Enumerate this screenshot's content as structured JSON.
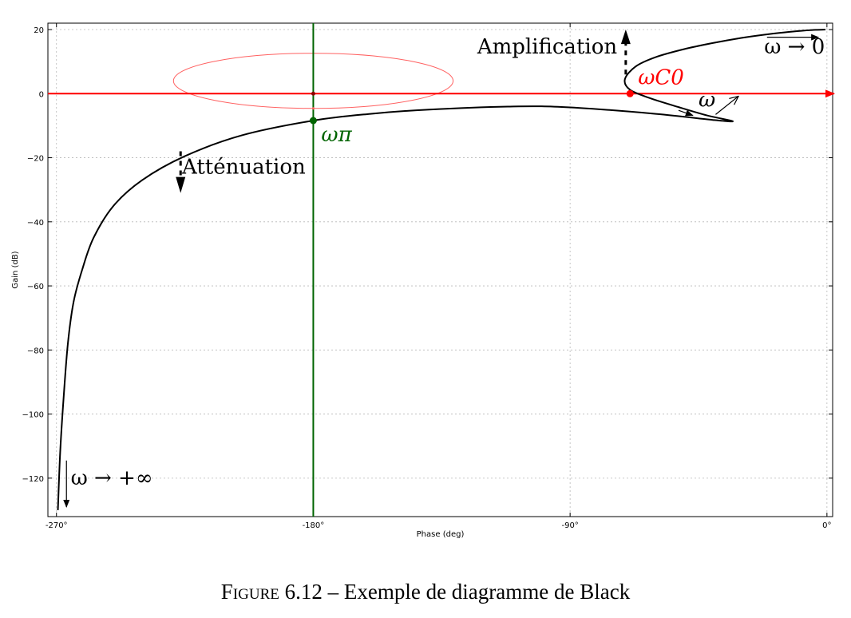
{
  "caption": {
    "figure_label": "Figure 6.12",
    "separator": " – ",
    "text": "Exemple de diagramme de Black"
  },
  "chart_data": {
    "type": "line",
    "title": "",
    "xlabel": "Phase (deg)",
    "ylabel": "Gain (dB)",
    "xlim": [
      -273,
      2
    ],
    "ylim": [
      -132,
      22
    ],
    "xticks": [
      -270,
      -180,
      -90,
      0
    ],
    "xtick_labels": [
      "-270°",
      "-180°",
      "-90°",
      "0°"
    ],
    "yticks": [
      20,
      0,
      -20,
      -40,
      -60,
      -80,
      -100,
      -120
    ],
    "ytick_labels": [
      "20",
      "0",
      "−20",
      "−40",
      "−60",
      "−80",
      "−100",
      "−120"
    ],
    "grid": true,
    "series": [
      {
        "color": "#000000",
        "x": [
          -0.5,
          -4,
          -9,
          -15,
          -22,
          -30,
          -40,
          -50,
          -60,
          -67,
          -70.8,
          -69,
          -62,
          -52,
          -42,
          -33,
          -40,
          -60,
          -90,
          -110,
          -140,
          -160,
          -180,
          -205,
          -225,
          -240,
          -250,
          -257,
          -261,
          -264,
          -266,
          -267.5,
          -268.7,
          -269.5
        ],
        "y": [
          20,
          19.9,
          19.6,
          19.1,
          18.4,
          17.4,
          15.8,
          13.9,
          11.4,
          8.5,
          4.5,
          1.2,
          -1.4,
          -4.2,
          -6.8,
          -8.6,
          -8.2,
          -6.3,
          -4.3,
          -4,
          -5,
          -6.3,
          -8.4,
          -13,
          -19.5,
          -27,
          -35,
          -45,
          -55,
          -65,
          -78,
          -95,
          -112,
          -130
        ]
      }
    ],
    "reference_lines": [
      {
        "orientation": "horizontal",
        "value": 0,
        "color": "#ff0000"
      },
      {
        "orientation": "vertical",
        "value": -180,
        "color": "#006400"
      }
    ],
    "points": [
      {
        "label": "ωC0",
        "x": -69,
        "y": 0,
        "color": "#ff0000"
      },
      {
        "label": "ωπ",
        "x": -180,
        "y": -8.4,
        "color": "#006400"
      }
    ],
    "ellipse": {
      "cx": -180,
      "cy": 4,
      "rx": 49,
      "ry": 8.6,
      "color": "#ff6060"
    },
    "annotations": [
      {
        "text": "Amplification",
        "x": -73.5,
        "y": 12.5
      },
      {
        "text": "Atténuation",
        "x": -226,
        "y": -25
      },
      {
        "text": "ω → 0",
        "x": -22,
        "y": 12.5
      },
      {
        "text": "ω → +∞",
        "x": -265,
        "y": -122
      },
      {
        "text": "ω",
        "x": -45,
        "y": -4
      }
    ]
  }
}
